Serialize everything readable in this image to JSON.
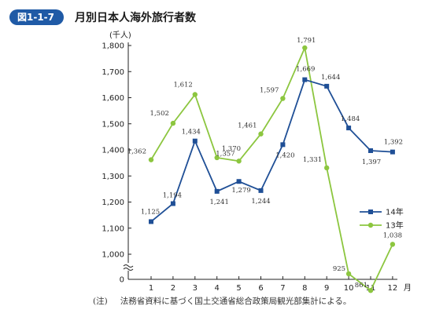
{
  "figure": {
    "label": "図1-1-7",
    "title": "月別日本人海外旅行者数",
    "note_tag": "(注)",
    "note_text": "法務省資料に基づく国土交通省総合政策局観光部集計による。"
  },
  "colors": {
    "badge": "#1f5aa6",
    "series_14": "#1f4f96",
    "series_13": "#8cc63f"
  },
  "chart_data": {
    "type": "line",
    "unit_label": "(千人)",
    "x_unit": "月",
    "categories": [
      "1",
      "2",
      "3",
      "4",
      "5",
      "6",
      "7",
      "8",
      "9",
      "10",
      "11",
      "12"
    ],
    "yticks": [
      "1,800",
      "1,700",
      "1,600",
      "1,500",
      "1,400",
      "1,300",
      "1,200",
      "1,100",
      "1,000",
      "0"
    ],
    "ylim": [
      1000,
      1800
    ],
    "axis_break": true,
    "grid": false,
    "legend_position": "right",
    "series": [
      {
        "name": "14年",
        "color": "#1f4f96",
        "marker": "square",
        "values": [
          1125,
          1194,
          1434,
          1241,
          1279,
          1244,
          1420,
          1669,
          1644,
          1484,
          1397,
          1392
        ],
        "labels": [
          "1,125",
          "1,194",
          "1,434",
          "1,241",
          "1,279",
          "1,244",
          "1,420",
          "1,669",
          "1,644",
          "1,484",
          "1,397",
          "1,392"
        ]
      },
      {
        "name": "13年",
        "color": "#8cc63f",
        "marker": "circle",
        "values": [
          1362,
          1502,
          1612,
          1370,
          1357,
          1461,
          1597,
          1791,
          1331,
          925,
          861,
          1038
        ],
        "labels": [
          "1,362",
          "1,502",
          "1,612",
          "1,370",
          "1,357",
          "1,461",
          "1,597",
          "1,791",
          "1,331",
          "925",
          "861",
          "1,038"
        ]
      }
    ]
  }
}
